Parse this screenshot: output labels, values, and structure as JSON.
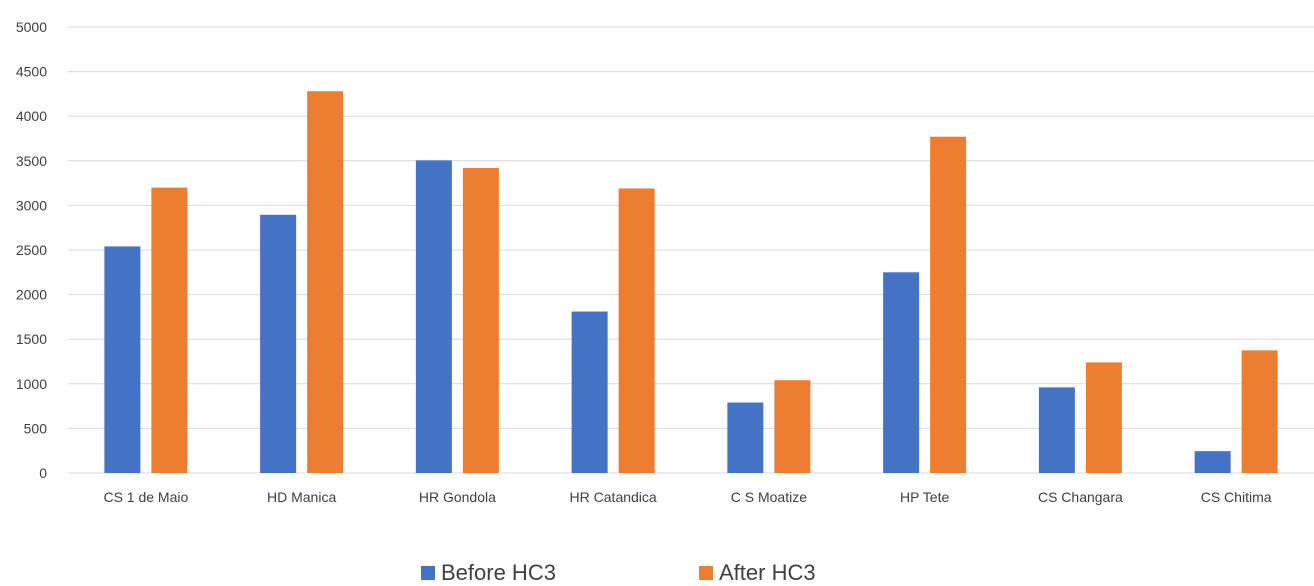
{
  "chart_data": {
    "type": "bar",
    "title": "",
    "xlabel": "",
    "ylabel": "",
    "categories": [
      "CS 1 de Maio",
      "HD  Manica",
      "HR Gondola",
      "HR Catandica",
      "C S Moatize",
      "HP Tete",
      "CS Changara",
      "CS Chitima"
    ],
    "series": [
      {
        "name": "Before HC3",
        "color": "#4472C4",
        "values": [
          2540,
          2895,
          3505,
          1810,
          790,
          2250,
          960,
          245
        ]
      },
      {
        "name": "After HC3",
        "color": "#ED7D31",
        "values": [
          3200,
          4280,
          3420,
          3190,
          1040,
          3770,
          1240,
          1375
        ]
      }
    ],
    "ylim": [
      0,
      5000
    ],
    "yticks": [
      0,
      500,
      1000,
      1500,
      2000,
      2500,
      3000,
      3500,
      4000,
      4500,
      5000
    ],
    "grid": true,
    "legend_position": "bottom"
  }
}
